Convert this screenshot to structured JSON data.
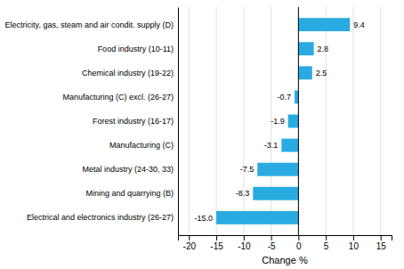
{
  "chart_data": {
    "type": "bar",
    "orientation": "horizontal",
    "categories": [
      "Electricity, gas, steam and air condit. supply (D)",
      "Food industry (10-11)",
      "Chemical industry (19-22)",
      "Manufacturing (C) excl. (26-27)",
      "Forest industry (16-17)",
      "Manufacturing (C)",
      "Metal industry (24-30, 33)",
      "Mining and quarrying (B)",
      "Electrical and electronics industry (26-27)"
    ],
    "values": [
      9.4,
      2.8,
      2.5,
      -0.7,
      -1.9,
      -3.1,
      -7.5,
      -8.3,
      -15.0
    ],
    "value_labels": [
      "9.4",
      "2.8",
      "2.5",
      "-0.7",
      "-1.9",
      "-3.1",
      "-7.5",
      "-8.3",
      "-15.0"
    ],
    "data_labels": true,
    "color": "#29abe2",
    "xlabel": "Change %",
    "xlim": [
      -22,
      17
    ],
    "xticks": [
      -20,
      -15,
      -10,
      -5,
      0,
      5,
      10,
      15
    ],
    "grid": true
  }
}
